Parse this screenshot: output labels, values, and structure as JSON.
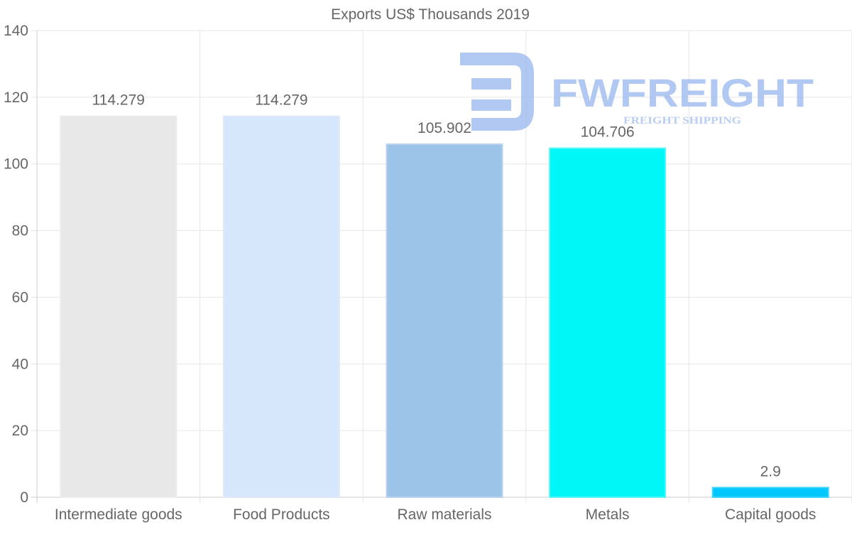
{
  "watermark": {
    "brand": "FWFREIGHT",
    "tagline": "FREIGHT SHIPPING",
    "color": "#9dbbef"
  },
  "chart_data": {
    "type": "bar",
    "title": "Exports US$ Thousands 2019",
    "xlabel": "",
    "ylabel": "",
    "categories": [
      "Intermediate goods",
      "Food Products",
      "Raw materials",
      "Metals",
      "Capital goods"
    ],
    "values": [
      114.279,
      114.279,
      105.902,
      104.706,
      2.9
    ],
    "value_labels": [
      "114.279",
      "114.279",
      "105.902",
      "104.706",
      "2.9"
    ],
    "colors": [
      "#e8e8e8",
      "#d6e7fb",
      "#9cc4e8",
      "#00f7f7",
      "#00c8ff"
    ],
    "border_colors": [
      "#ececec",
      "#dfe9f7",
      "#b9d3ec",
      "#57f7f7",
      "#3fd4ff"
    ],
    "ylim": [
      0,
      140
    ],
    "yticks": [
      0,
      20,
      40,
      60,
      80,
      100,
      120,
      140
    ],
    "grid": true,
    "legend": "none"
  }
}
